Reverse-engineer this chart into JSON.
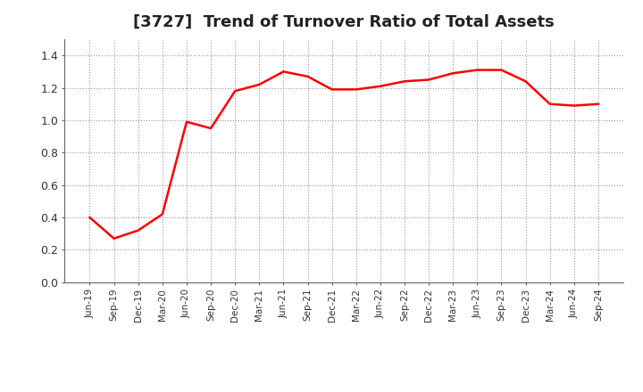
{
  "title": "[3727]  Trend of Turnover Ratio of Total Assets",
  "title_fontsize": 13,
  "line_color": "#FF0000",
  "line_width": 1.8,
  "background_color": "#FFFFFF",
  "grid_color": "#999999",
  "ylim": [
    0.0,
    1.5
  ],
  "yticks": [
    0.0,
    0.2,
    0.4,
    0.6,
    0.8,
    1.0,
    1.2,
    1.4
  ],
  "x_labels": [
    "Jun-19",
    "Sep-19",
    "Dec-19",
    "Mar-20",
    "Jun-20",
    "Sep-20",
    "Dec-20",
    "Mar-21",
    "Jun-21",
    "Sep-21",
    "Dec-21",
    "Mar-22",
    "Jun-22",
    "Sep-22",
    "Dec-22",
    "Mar-23",
    "Jun-23",
    "Sep-23",
    "Dec-23",
    "Mar-24",
    "Jun-24",
    "Sep-24"
  ],
  "values": [
    0.4,
    0.27,
    0.32,
    0.42,
    0.99,
    0.95,
    1.18,
    1.22,
    1.3,
    1.27,
    1.19,
    1.19,
    1.21,
    1.24,
    1.25,
    1.29,
    1.31,
    1.31,
    1.24,
    1.1,
    1.09,
    1.1
  ]
}
